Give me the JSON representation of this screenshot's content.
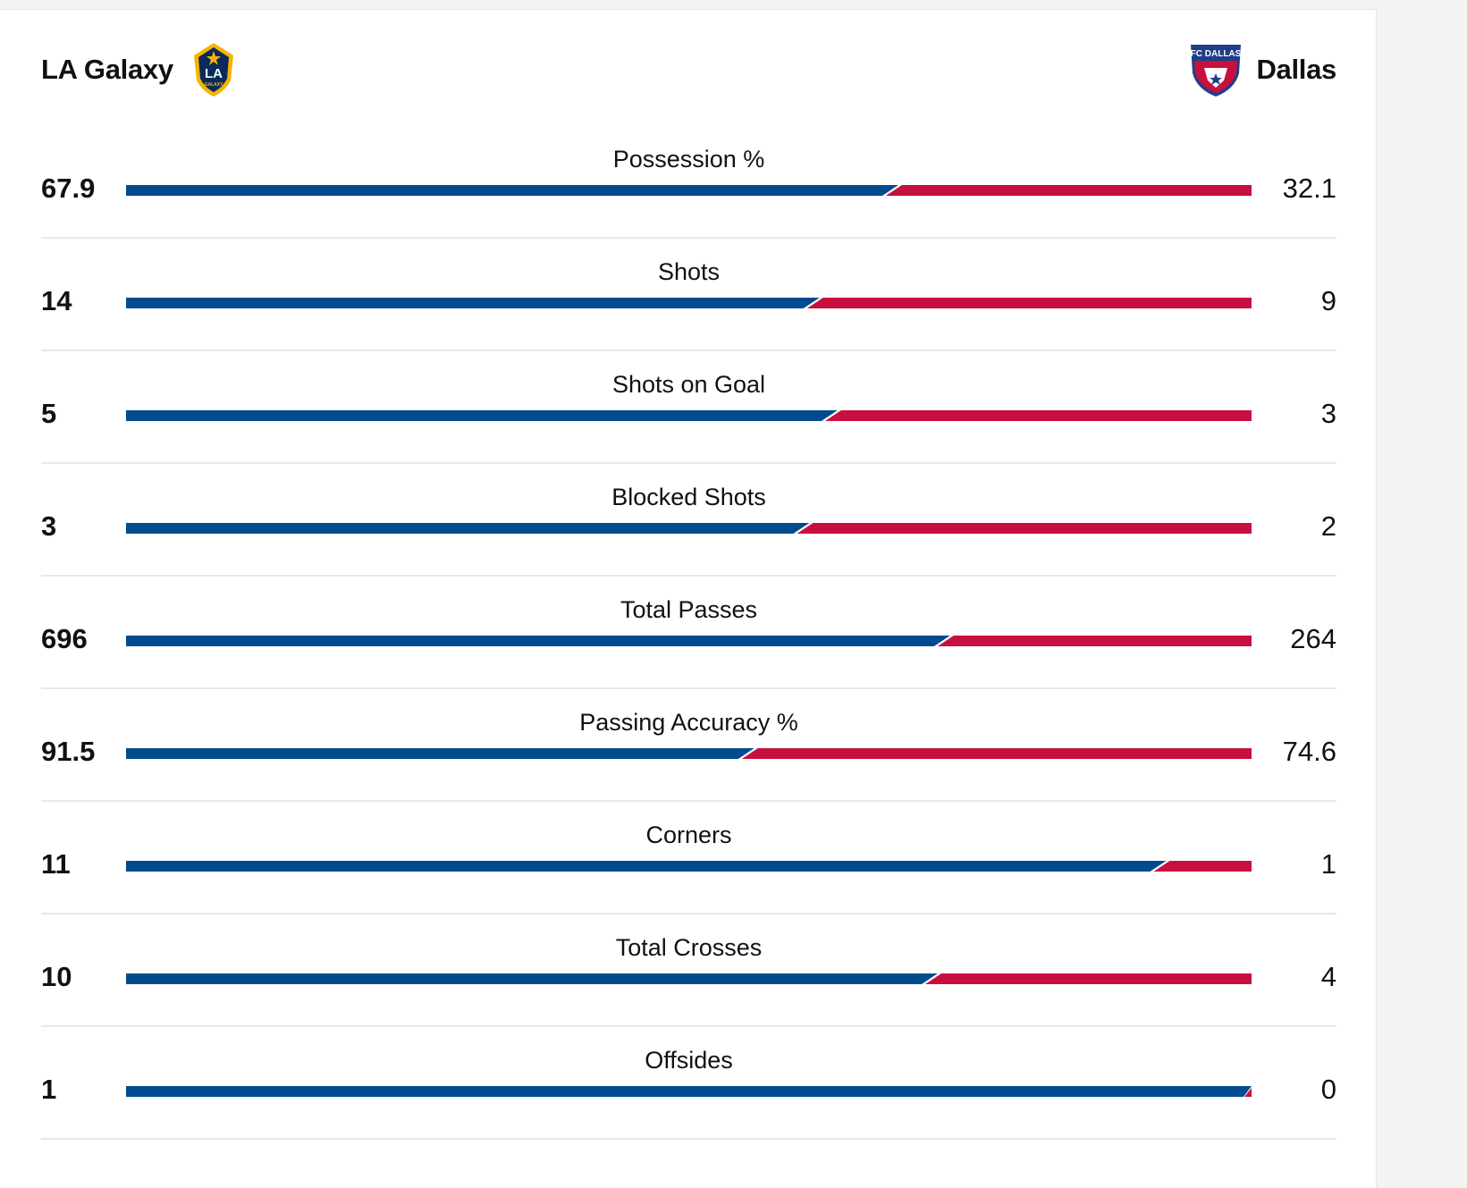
{
  "teams": {
    "home": {
      "name": "LA Galaxy",
      "crest_text": "LA",
      "crest_subtext": "GALAXY",
      "crest_icon": "la-galaxy-crest-icon",
      "color": "#004b8d"
    },
    "away": {
      "name": "Dallas",
      "crest_text": "FC DALLAS",
      "crest_icon": "fc-dallas-crest-icon",
      "color": "#c8103e"
    }
  },
  "stats": [
    {
      "label": "Possession %",
      "home": "67.9",
      "away": "32.1",
      "home_share": 0.679
    },
    {
      "label": "Shots",
      "home": "14",
      "away": "9",
      "home_share": 0.609
    },
    {
      "label": "Shots on Goal",
      "home": "5",
      "away": "3",
      "home_share": 0.625
    },
    {
      "label": "Blocked Shots",
      "home": "3",
      "away": "2",
      "home_share": 0.6
    },
    {
      "label": "Total Passes",
      "home": "696",
      "away": "264",
      "home_share": 0.725
    },
    {
      "label": "Passing Accuracy %",
      "home": "91.5",
      "away": "74.6",
      "home_share": 0.551
    },
    {
      "label": "Corners",
      "home": "11",
      "away": "1",
      "home_share": 0.917
    },
    {
      "label": "Total Crosses",
      "home": "10",
      "away": "4",
      "home_share": 0.714
    },
    {
      "label": "Offsides",
      "home": "1",
      "away": "0",
      "home_share": 1.0
    }
  ]
}
